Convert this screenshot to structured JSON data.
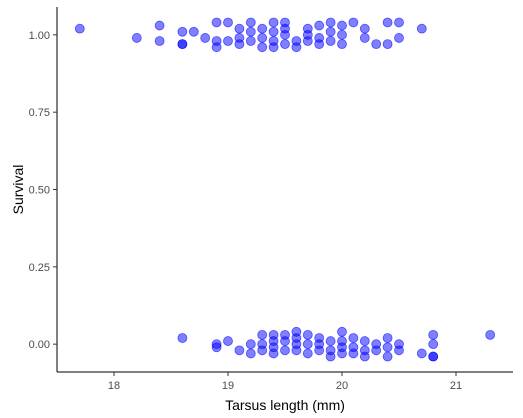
{
  "chart_data": {
    "type": "scatter",
    "title": "",
    "xlabel": "Tarsus length (mm)",
    "ylabel": "Survival",
    "xlim": [
      17.5,
      21.5
    ],
    "ylim": [
      -0.09,
      1.09
    ],
    "x_ticks": [
      {
        "value": 18,
        "label": "18"
      },
      {
        "value": 19,
        "label": "19"
      },
      {
        "value": 20,
        "label": "20"
      },
      {
        "value": 21,
        "label": "21"
      }
    ],
    "y_ticks": [
      {
        "value": 0.0,
        "label": "0.00"
      },
      {
        "value": 0.25,
        "label": "0.25"
      },
      {
        "value": 0.5,
        "label": "0.50"
      },
      {
        "value": 0.75,
        "label": "0.75"
      },
      {
        "value": 1.0,
        "label": "1.00"
      }
    ],
    "grid": false,
    "legend": "none",
    "point_color": "#0000ff",
    "point_opacity": 0.5,
    "note_points": "y values include vertical jitter around 0 and 1",
    "series": [
      {
        "points": [
          [
            17.7,
            1.02
          ],
          [
            18.2,
            0.99
          ],
          [
            18.4,
            1.03
          ],
          [
            18.4,
            0.98
          ],
          [
            18.6,
            1.01
          ],
          [
            18.6,
            0.97
          ],
          [
            18.6,
            0.97
          ],
          [
            18.7,
            1.01
          ],
          [
            18.8,
            0.99
          ],
          [
            18.9,
            1.04
          ],
          [
            18.9,
            0.98
          ],
          [
            18.9,
            0.96
          ],
          [
            19.0,
            1.04
          ],
          [
            19.0,
            0.98
          ],
          [
            19.1,
            1.02
          ],
          [
            19.1,
            0.99
          ],
          [
            19.1,
            0.97
          ],
          [
            19.2,
            1.04
          ],
          [
            19.2,
            1.01
          ],
          [
            19.2,
            0.98
          ],
          [
            19.3,
            1.02
          ],
          [
            19.3,
            0.99
          ],
          [
            19.3,
            0.96
          ],
          [
            19.4,
            1.04
          ],
          [
            19.4,
            1.01
          ],
          [
            19.4,
            0.98
          ],
          [
            19.4,
            0.96
          ],
          [
            19.5,
            1.04
          ],
          [
            19.5,
            1.02
          ],
          [
            19.5,
            1.0
          ],
          [
            19.5,
            0.97
          ],
          [
            19.6,
            0.98
          ],
          [
            19.6,
            0.96
          ],
          [
            19.7,
            1.02
          ],
          [
            19.7,
            1.0
          ],
          [
            19.7,
            0.98
          ],
          [
            19.8,
            1.03
          ],
          [
            19.8,
            0.99
          ],
          [
            19.8,
            0.97
          ],
          [
            19.9,
            1.04
          ],
          [
            19.9,
            1.01
          ],
          [
            19.9,
            0.98
          ],
          [
            20.0,
            1.03
          ],
          [
            20.0,
            1.0
          ],
          [
            20.0,
            0.97
          ],
          [
            20.1,
            1.04
          ],
          [
            20.2,
            1.02
          ],
          [
            20.2,
            0.99
          ],
          [
            20.3,
            0.97
          ],
          [
            20.4,
            1.04
          ],
          [
            20.4,
            0.97
          ],
          [
            20.5,
            1.04
          ],
          [
            20.5,
            0.99
          ],
          [
            20.7,
            1.02
          ],
          [
            18.6,
            0.02
          ],
          [
            18.9,
            0.0
          ],
          [
            18.9,
            -0.01
          ],
          [
            19.0,
            0.01
          ],
          [
            19.1,
            -0.02
          ],
          [
            19.2,
            0.0
          ],
          [
            19.2,
            -0.03
          ],
          [
            19.3,
            0.03
          ],
          [
            19.3,
            0.0
          ],
          [
            19.3,
            -0.02
          ],
          [
            19.4,
            0.03
          ],
          [
            19.4,
            0.01
          ],
          [
            19.4,
            -0.01
          ],
          [
            19.4,
            -0.03
          ],
          [
            19.5,
            0.03
          ],
          [
            19.5,
            0.01
          ],
          [
            19.5,
            -0.02
          ],
          [
            19.6,
            0.04
          ],
          [
            19.6,
            0.02
          ],
          [
            19.6,
            0.0
          ],
          [
            19.6,
            -0.02
          ],
          [
            19.7,
            0.03
          ],
          [
            19.7,
            0.0
          ],
          [
            19.7,
            -0.03
          ],
          [
            19.8,
            0.02
          ],
          [
            19.8,
            0.0
          ],
          [
            19.8,
            -0.02
          ],
          [
            19.9,
            0.01
          ],
          [
            19.9,
            -0.02
          ],
          [
            19.9,
            -0.04
          ],
          [
            20.0,
            0.04
          ],
          [
            20.0,
            0.01
          ],
          [
            20.0,
            -0.01
          ],
          [
            20.0,
            -0.03
          ],
          [
            20.1,
            0.02
          ],
          [
            20.1,
            -0.01
          ],
          [
            20.1,
            -0.03
          ],
          [
            20.2,
            0.01
          ],
          [
            20.2,
            -0.02
          ],
          [
            20.2,
            -0.04
          ],
          [
            20.3,
            0.0
          ],
          [
            20.3,
            -0.02
          ],
          [
            20.4,
            0.02
          ],
          [
            20.4,
            -0.01
          ],
          [
            20.4,
            -0.04
          ],
          [
            20.5,
            0.0
          ],
          [
            20.5,
            -0.02
          ],
          [
            20.7,
            -0.03
          ],
          [
            20.8,
            0.03
          ],
          [
            20.8,
            0.0
          ],
          [
            20.8,
            -0.04
          ],
          [
            20.8,
            -0.04
          ],
          [
            21.3,
            0.03
          ]
        ]
      }
    ]
  }
}
